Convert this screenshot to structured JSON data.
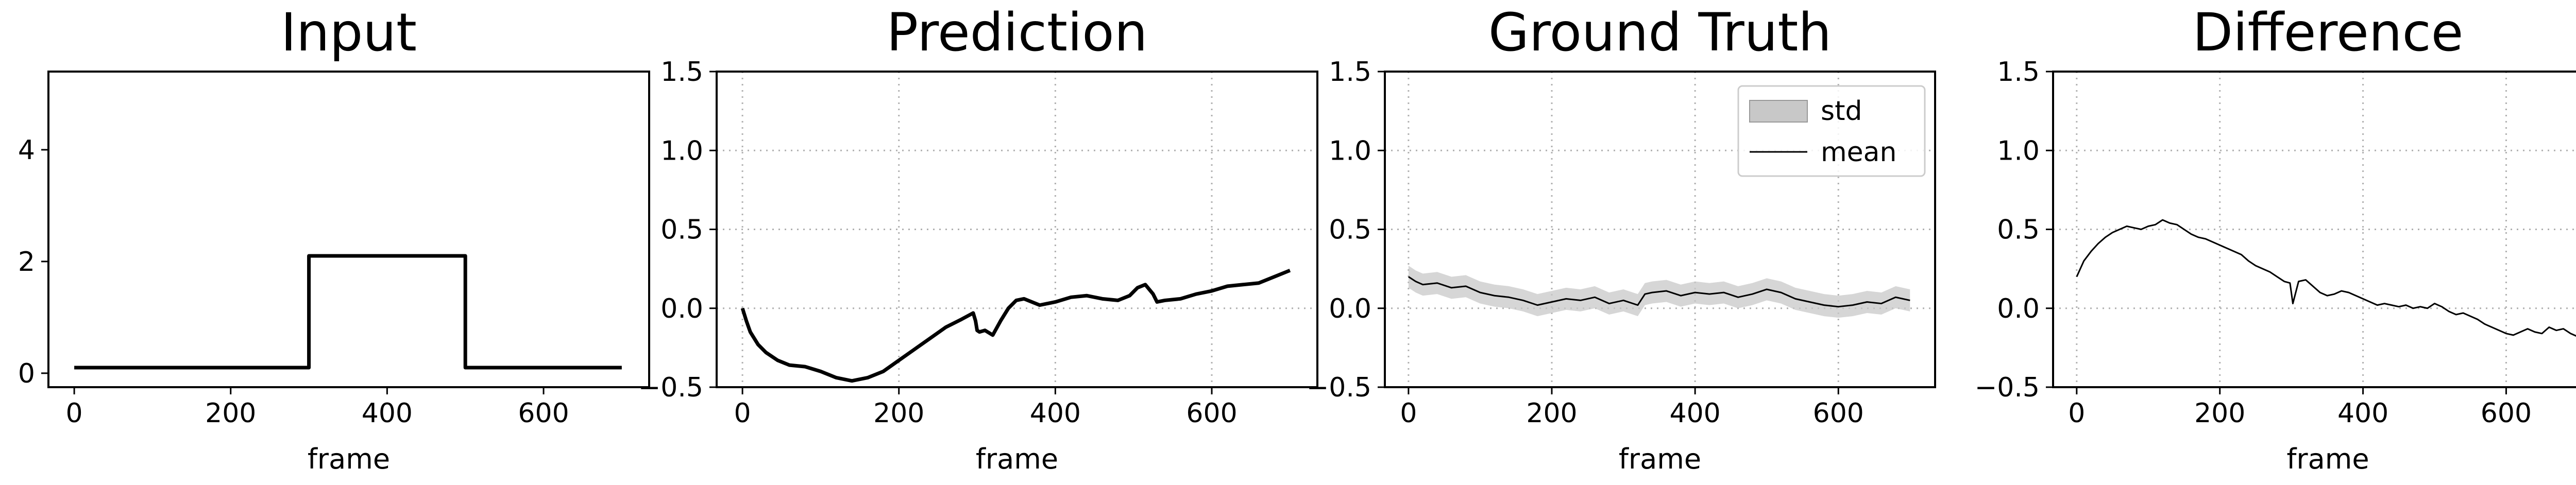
{
  "chart_data": [
    {
      "type": "line",
      "title": "Input",
      "xlabel": "frame",
      "ylabel": "",
      "xlim": [
        -33,
        735
      ],
      "ylim": [
        -0.25,
        5.4
      ],
      "xticks": [
        0,
        200,
        400,
        600
      ],
      "yticks": [
        0,
        2,
        4
      ],
      "ytick_labels": [
        "0",
        "2",
        "4"
      ],
      "grid": false,
      "series": [
        {
          "x": [
            0,
            300,
            300,
            500,
            500,
            700
          ],
          "y": [
            0.1,
            0.1,
            2.1,
            2.1,
            0.1,
            0.1
          ]
        }
      ]
    },
    {
      "type": "line",
      "title": "Prediction",
      "xlabel": "frame",
      "ylabel": "",
      "xlim": [
        -33,
        735
      ],
      "ylim": [
        -0.5,
        1.5
      ],
      "xticks": [
        0,
        200,
        400,
        600
      ],
      "yticks": [
        -0.5,
        0.0,
        0.5,
        1.0,
        1.5
      ],
      "ytick_labels": [
        "−0.5",
        "0.0",
        "0.5",
        "1.0",
        "1.5"
      ],
      "grid": true,
      "series": [
        {
          "x": [
            0,
            5,
            10,
            20,
            30,
            45,
            60,
            80,
            100,
            120,
            140,
            160,
            180,
            200,
            220,
            240,
            260,
            280,
            295,
            298,
            300,
            303,
            310,
            320,
            330,
            340,
            350,
            360,
            370,
            380,
            400,
            420,
            440,
            460,
            480,
            495,
            505,
            515,
            525,
            530,
            540,
            560,
            580,
            600,
            620,
            640,
            660,
            680,
            700
          ],
          "y": [
            0.0,
            -0.08,
            -0.15,
            -0.23,
            -0.28,
            -0.33,
            -0.36,
            -0.37,
            -0.4,
            -0.44,
            -0.46,
            -0.44,
            -0.4,
            -0.33,
            -0.26,
            -0.19,
            -0.12,
            -0.07,
            -0.03,
            -0.08,
            -0.14,
            -0.15,
            -0.14,
            -0.17,
            -0.08,
            0.0,
            0.05,
            0.06,
            0.04,
            0.02,
            0.04,
            0.07,
            0.08,
            0.06,
            0.05,
            0.08,
            0.13,
            0.15,
            0.09,
            0.04,
            0.05,
            0.06,
            0.09,
            0.11,
            0.14,
            0.15,
            0.16,
            0.2,
            0.24
          ]
        }
      ]
    },
    {
      "type": "line",
      "title": "Ground Truth",
      "xlabel": "frame",
      "ylabel": "",
      "xlim": [
        -33,
        735
      ],
      "ylim": [
        -0.5,
        1.5
      ],
      "xticks": [
        0,
        200,
        400,
        600
      ],
      "yticks": [
        -0.5,
        0.0,
        0.5,
        1.0,
        1.5
      ],
      "ytick_labels": [
        "−0.5",
        "0.0",
        "0.5",
        "1.0",
        "1.5"
      ],
      "grid": true,
      "legend": {
        "position": "top-right",
        "entries": [
          "std",
          "mean"
        ]
      },
      "series": [
        {
          "name": "mean",
          "x": [
            0,
            10,
            20,
            40,
            60,
            80,
            100,
            120,
            140,
            160,
            180,
            200,
            220,
            240,
            260,
            280,
            300,
            320,
            330,
            340,
            360,
            380,
            400,
            420,
            440,
            460,
            480,
            500,
            520,
            540,
            560,
            580,
            600,
            620,
            640,
            660,
            680,
            700
          ],
          "y": [
            0.2,
            0.17,
            0.15,
            0.16,
            0.13,
            0.14,
            0.1,
            0.08,
            0.07,
            0.05,
            0.02,
            0.04,
            0.06,
            0.05,
            0.07,
            0.03,
            0.05,
            0.02,
            0.09,
            0.1,
            0.11,
            0.08,
            0.1,
            0.09,
            0.1,
            0.07,
            0.09,
            0.12,
            0.1,
            0.06,
            0.04,
            0.02,
            0.01,
            0.02,
            0.04,
            0.03,
            0.07,
            0.05
          ]
        }
      ],
      "std": 0.07
    },
    {
      "type": "line",
      "title": "Difference",
      "xlabel": "frame",
      "ylabel": "",
      "xlim": [
        -33,
        735
      ],
      "ylim": [
        -0.5,
        1.5
      ],
      "xticks": [
        0,
        200,
        400,
        600
      ],
      "yticks": [
        -0.5,
        0.0,
        0.5,
        1.0,
        1.5
      ],
      "ytick_labels": [
        "−0.5",
        "0.0",
        "0.5",
        "1.0",
        "1.5"
      ],
      "grid": true,
      "series": [
        {
          "x": [
            0,
            10,
            20,
            30,
            40,
            50,
            60,
            70,
            80,
            90,
            100,
            110,
            120,
            130,
            140,
            150,
            160,
            170,
            180,
            190,
            200,
            210,
            220,
            230,
            240,
            250,
            260,
            270,
            280,
            290,
            298,
            302,
            310,
            320,
            330,
            340,
            350,
            360,
            370,
            380,
            390,
            400,
            410,
            420,
            430,
            440,
            450,
            460,
            470,
            480,
            490,
            500,
            510,
            520,
            530,
            540,
            550,
            560,
            570,
            580,
            590,
            600,
            610,
            620,
            630,
            640,
            650,
            660,
            670,
            680,
            690,
            700
          ],
          "y": [
            0.2,
            0.3,
            0.36,
            0.41,
            0.45,
            0.48,
            0.5,
            0.52,
            0.51,
            0.5,
            0.52,
            0.53,
            0.56,
            0.54,
            0.53,
            0.5,
            0.47,
            0.45,
            0.44,
            0.42,
            0.4,
            0.38,
            0.36,
            0.34,
            0.3,
            0.27,
            0.25,
            0.23,
            0.2,
            0.17,
            0.16,
            0.03,
            0.17,
            0.18,
            0.14,
            0.1,
            0.08,
            0.09,
            0.11,
            0.1,
            0.08,
            0.06,
            0.04,
            0.02,
            0.03,
            0.02,
            0.01,
            0.02,
            0.0,
            0.01,
            0.0,
            0.03,
            0.01,
            -0.02,
            -0.04,
            -0.03,
            -0.05,
            -0.07,
            -0.1,
            -0.12,
            -0.14,
            -0.16,
            -0.17,
            -0.15,
            -0.13,
            -0.15,
            -0.16,
            -0.12,
            -0.14,
            -0.13,
            -0.16,
            -0.18
          ]
        }
      ]
    }
  ]
}
